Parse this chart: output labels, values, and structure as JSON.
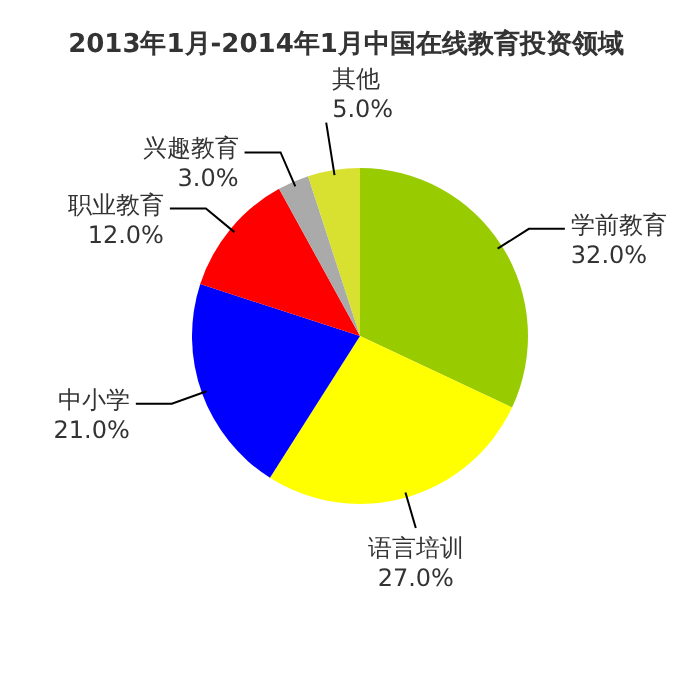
{
  "chart_data": {
    "type": "pie",
    "title": "2013年1月-2014年1月中国在线教育投资领域",
    "categories": [
      "学前教育",
      "语言培训",
      "中小学",
      "职业教育",
      "兴趣教育",
      "其他"
    ],
    "values": [
      32,
      27,
      21,
      12,
      3,
      5
    ],
    "colors": [
      "#99cc00",
      "#ffff00",
      "#0000ff",
      "#ff0000",
      "#aaaaaa",
      "#d8e030"
    ],
    "value_labels": [
      "32.0%",
      "27.0%",
      "21.0%",
      "12.0%",
      "3.0%",
      "5.0%"
    ]
  }
}
